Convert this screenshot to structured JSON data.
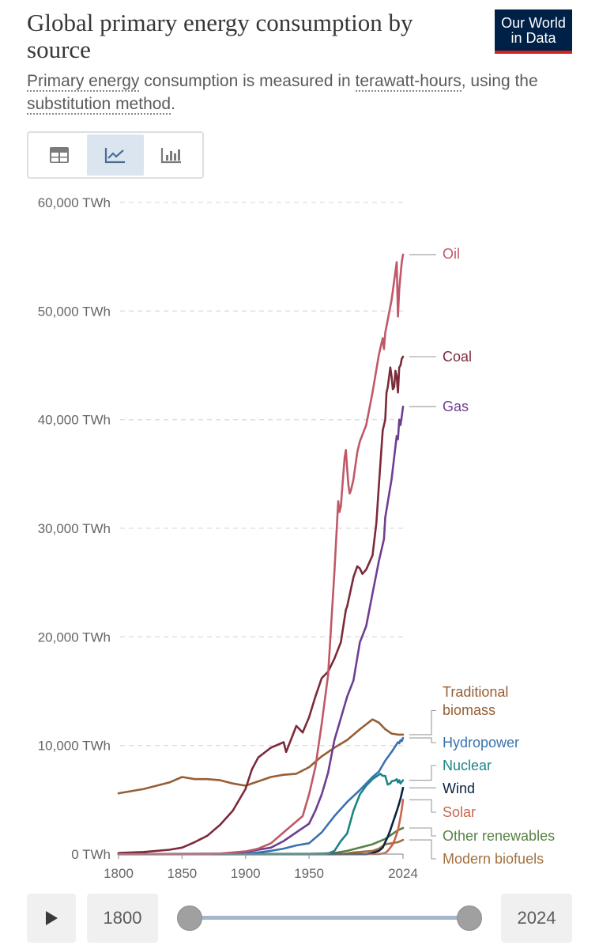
{
  "header": {
    "title": "Global primary energy consumption by source",
    "subtitle_part1": "Primary energy",
    "subtitle_part2": " consumption is measured in ",
    "subtitle_part3": "terawatt-hours",
    "subtitle_part4": ", using the ",
    "subtitle_part5": "substitution method",
    "subtitle_part6": ".",
    "logo_line1": "Our World",
    "logo_line2": "in Data"
  },
  "tabs": [
    {
      "name": "table",
      "icon": "table-icon",
      "active": false
    },
    {
      "name": "line-chart",
      "icon": "line-chart-icon",
      "active": true
    },
    {
      "name": "bar-chart",
      "icon": "bar-chart-icon",
      "active": false
    }
  ],
  "colors": {
    "oil": "#c05867",
    "coal": "#7c2a3a",
    "gas": "#6d3e91",
    "traditional_biomass": "#965e35",
    "hydropower": "#3a72b0",
    "nuclear": "#1d8486",
    "wind": "#0b2342",
    "solar": "#c8664e",
    "other_renewables": "#578145",
    "modern_biofuels": "#a2703e",
    "grid": "#dddddd",
    "axis": "#666666"
  },
  "chart_data": {
    "type": "line",
    "title": "Global primary energy consumption by source",
    "ylabel": "",
    "xlabel": "",
    "ylim": [
      0,
      60000
    ],
    "xlim": [
      1800,
      2024
    ],
    "y_ticks": [
      {
        "value": 0,
        "label": "0 TWh"
      },
      {
        "value": 10000,
        "label": "10,000 TWh"
      },
      {
        "value": 20000,
        "label": "20,000 TWh"
      },
      {
        "value": 30000,
        "label": "30,000 TWh"
      },
      {
        "value": 40000,
        "label": "40,000 TWh"
      },
      {
        "value": 50000,
        "label": "50,000 TWh"
      },
      {
        "value": 60000,
        "label": "60,000 TWh"
      }
    ],
    "x_ticks": [
      {
        "value": 1800,
        "label": "1800"
      },
      {
        "value": 1850,
        "label": "1850"
      },
      {
        "value": 1900,
        "label": "1900"
      },
      {
        "value": 1950,
        "label": "1950"
      },
      {
        "value": 2024,
        "label": "2024"
      }
    ],
    "series": [
      {
        "key": "oil",
        "name": "Oil",
        "label_value": 55200,
        "points": [
          [
            1800,
            0
          ],
          [
            1870,
            10
          ],
          [
            1880,
            50
          ],
          [
            1890,
            150
          ],
          [
            1900,
            250
          ],
          [
            1910,
            500
          ],
          [
            1920,
            1000
          ],
          [
            1930,
            2000
          ],
          [
            1940,
            3000
          ],
          [
            1945,
            3500
          ],
          [
            1950,
            5500
          ],
          [
            1955,
            8000
          ],
          [
            1960,
            12000
          ],
          [
            1965,
            16500
          ],
          [
            1970,
            26000
          ],
          [
            1973,
            32500
          ],
          [
            1974,
            31500
          ],
          [
            1975,
            32000
          ],
          [
            1978,
            36500
          ],
          [
            1979,
            37200
          ],
          [
            1980,
            35500
          ],
          [
            1981,
            34000
          ],
          [
            1982,
            33200
          ],
          [
            1983,
            33500
          ],
          [
            1985,
            34500
          ],
          [
            1988,
            37000
          ],
          [
            1990,
            38000
          ],
          [
            1995,
            39500
          ],
          [
            2000,
            42500
          ],
          [
            2005,
            46000
          ],
          [
            2008,
            47500
          ],
          [
            2009,
            46500
          ],
          [
            2010,
            48000
          ],
          [
            2015,
            51000
          ],
          [
            2019,
            54500
          ],
          [
            2020,
            49500
          ],
          [
            2021,
            52000
          ],
          [
            2023,
            54500
          ],
          [
            2024,
            55200
          ]
        ]
      },
      {
        "key": "coal",
        "name": "Coal",
        "label_value": 45800,
        "points": [
          [
            1800,
            100
          ],
          [
            1820,
            200
          ],
          [
            1840,
            400
          ],
          [
            1850,
            600
          ],
          [
            1860,
            1100
          ],
          [
            1870,
            1700
          ],
          [
            1880,
            2700
          ],
          [
            1890,
            4000
          ],
          [
            1900,
            6000
          ],
          [
            1905,
            7800
          ],
          [
            1910,
            8900
          ],
          [
            1920,
            9800
          ],
          [
            1930,
            10300
          ],
          [
            1932,
            9400
          ],
          [
            1940,
            11800
          ],
          [
            1945,
            11200
          ],
          [
            1950,
            12600
          ],
          [
            1955,
            14500
          ],
          [
            1960,
            16200
          ],
          [
            1965,
            16800
          ],
          [
            1970,
            18000
          ],
          [
            1975,
            19500
          ],
          [
            1979,
            22500
          ],
          [
            1980,
            22800
          ],
          [
            1985,
            25500
          ],
          [
            1988,
            26500
          ],
          [
            1990,
            26300
          ],
          [
            1992,
            25800
          ],
          [
            1995,
            26200
          ],
          [
            2000,
            27500
          ],
          [
            2003,
            30500
          ],
          [
            2005,
            34000
          ],
          [
            2008,
            39000
          ],
          [
            2010,
            40000
          ],
          [
            2011,
            42500
          ],
          [
            2012,
            43000
          ],
          [
            2014,
            44800
          ],
          [
            2015,
            44000
          ],
          [
            2016,
            42800
          ],
          [
            2017,
            43000
          ],
          [
            2018,
            44500
          ],
          [
            2019,
            44000
          ],
          [
            2020,
            42500
          ],
          [
            2021,
            44800
          ],
          [
            2022,
            45000
          ],
          [
            2023,
            45600
          ],
          [
            2024,
            45800
          ]
        ]
      },
      {
        "key": "gas",
        "name": "Gas",
        "label_value": 41200,
        "points": [
          [
            1800,
            0
          ],
          [
            1880,
            30
          ],
          [
            1890,
            100
          ],
          [
            1900,
            200
          ],
          [
            1910,
            400
          ],
          [
            1920,
            600
          ],
          [
            1930,
            1200
          ],
          [
            1940,
            2000
          ],
          [
            1950,
            2800
          ],
          [
            1955,
            4000
          ],
          [
            1960,
            5500
          ],
          [
            1965,
            7500
          ],
          [
            1970,
            10500
          ],
          [
            1975,
            12500
          ],
          [
            1980,
            14500
          ],
          [
            1985,
            16000
          ],
          [
            1990,
            19500
          ],
          [
            1995,
            21000
          ],
          [
            2000,
            24000
          ],
          [
            2005,
            27000
          ],
          [
            2009,
            29000
          ],
          [
            2010,
            31000
          ],
          [
            2015,
            34500
          ],
          [
            2019,
            38500
          ],
          [
            2020,
            38200
          ],
          [
            2021,
            40000
          ],
          [
            2022,
            39500
          ],
          [
            2023,
            40300
          ],
          [
            2024,
            41200
          ]
        ]
      },
      {
        "key": "traditional_biomass",
        "name": "Traditional biomass",
        "label_value": 11000,
        "points": [
          [
            1800,
            5600
          ],
          [
            1820,
            6000
          ],
          [
            1840,
            6600
          ],
          [
            1850,
            7100
          ],
          [
            1860,
            6900
          ],
          [
            1870,
            6900
          ],
          [
            1880,
            6800
          ],
          [
            1890,
            6500
          ],
          [
            1900,
            6300
          ],
          [
            1910,
            6700
          ],
          [
            1920,
            7100
          ],
          [
            1930,
            7300
          ],
          [
            1940,
            7400
          ],
          [
            1950,
            8000
          ],
          [
            1960,
            9000
          ],
          [
            1970,
            9800
          ],
          [
            1980,
            10500
          ],
          [
            1990,
            11500
          ],
          [
            2000,
            12400
          ],
          [
            2005,
            12100
          ],
          [
            2010,
            11500
          ],
          [
            2015,
            11100
          ],
          [
            2020,
            11000
          ],
          [
            2024,
            11000
          ]
        ]
      },
      {
        "key": "hydropower",
        "name": "Hydropower",
        "label_value": 10700,
        "points": [
          [
            1800,
            0
          ],
          [
            1900,
            50
          ],
          [
            1910,
            150
          ],
          [
            1920,
            300
          ],
          [
            1930,
            500
          ],
          [
            1940,
            800
          ],
          [
            1950,
            1000
          ],
          [
            1960,
            2000
          ],
          [
            1970,
            3500
          ],
          [
            1980,
            4800
          ],
          [
            1990,
            5900
          ],
          [
            2000,
            7100
          ],
          [
            2005,
            7600
          ],
          [
            2010,
            8600
          ],
          [
            2015,
            9400
          ],
          [
            2020,
            10300
          ],
          [
            2021,
            10200
          ],
          [
            2022,
            10500
          ],
          [
            2023,
            10400
          ],
          [
            2024,
            10700
          ]
        ]
      },
      {
        "key": "nuclear",
        "name": "Nuclear",
        "label_value": 6800,
        "points": [
          [
            1800,
            0
          ],
          [
            1960,
            0
          ],
          [
            1965,
            50
          ],
          [
            1970,
            300
          ],
          [
            1975,
            1200
          ],
          [
            1980,
            1900
          ],
          [
            1985,
            4000
          ],
          [
            1990,
            5500
          ],
          [
            1995,
            6300
          ],
          [
            2000,
            6900
          ],
          [
            2005,
            7300
          ],
          [
            2006,
            7400
          ],
          [
            2008,
            7200
          ],
          [
            2010,
            7200
          ],
          [
            2011,
            6800
          ],
          [
            2012,
            6400
          ],
          [
            2014,
            6500
          ],
          [
            2015,
            6700
          ],
          [
            2018,
            6800
          ],
          [
            2019,
            6900
          ],
          [
            2020,
            6600
          ],
          [
            2021,
            6800
          ],
          [
            2022,
            6500
          ],
          [
            2024,
            6800
          ]
        ]
      },
      {
        "key": "wind",
        "name": "Wind",
        "label_value": 6100,
        "points": [
          [
            1800,
            0
          ],
          [
            1995,
            0
          ],
          [
            2000,
            100
          ],
          [
            2005,
            300
          ],
          [
            2008,
            600
          ],
          [
            2010,
            1100
          ],
          [
            2012,
            1600
          ],
          [
            2014,
            2200
          ],
          [
            2016,
            2900
          ],
          [
            2018,
            3600
          ],
          [
            2020,
            4300
          ],
          [
            2022,
            5100
          ],
          [
            2024,
            6100
          ]
        ]
      },
      {
        "key": "solar",
        "name": "Solar",
        "label_value": 5000,
        "points": [
          [
            1800,
            0
          ],
          [
            2005,
            0
          ],
          [
            2010,
            100
          ],
          [
            2012,
            300
          ],
          [
            2014,
            600
          ],
          [
            2016,
            900
          ],
          [
            2018,
            1500
          ],
          [
            2020,
            2200
          ],
          [
            2022,
            3400
          ],
          [
            2023,
            4100
          ],
          [
            2024,
            5000
          ]
        ]
      },
      {
        "key": "other_renewables",
        "name": "Other renewables",
        "label_value": 2400,
        "points": [
          [
            1800,
            0
          ],
          [
            1950,
            20
          ],
          [
            1960,
            50
          ],
          [
            1970,
            100
          ],
          [
            1980,
            300
          ],
          [
            1990,
            600
          ],
          [
            2000,
            900
          ],
          [
            2010,
            1400
          ],
          [
            2015,
            1800
          ],
          [
            2020,
            2200
          ],
          [
            2024,
            2400
          ]
        ]
      },
      {
        "key": "modern_biofuels",
        "name": "Modern biofuels",
        "label_value": 1300,
        "points": [
          [
            1800,
            0
          ],
          [
            1975,
            0
          ],
          [
            1980,
            50
          ],
          [
            1985,
            150
          ],
          [
            1990,
            200
          ],
          [
            1995,
            250
          ],
          [
            2000,
            300
          ],
          [
            2005,
            500
          ],
          [
            2010,
            900
          ],
          [
            2015,
            1000
          ],
          [
            2020,
            1100
          ],
          [
            2022,
            1200
          ],
          [
            2024,
            1300
          ]
        ]
      }
    ]
  },
  "controls": {
    "start_year": "1800",
    "end_year": "2024",
    "slider_start": 1800,
    "slider_end": 2024
  }
}
